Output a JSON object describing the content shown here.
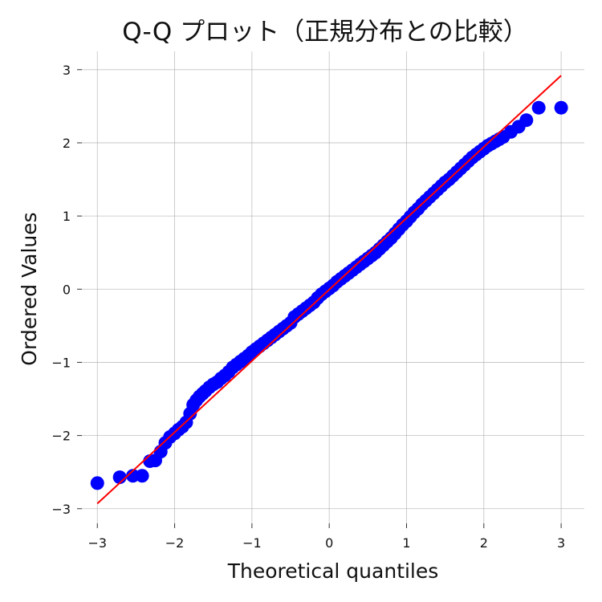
{
  "chart_data": {
    "type": "scatter",
    "title": "Q-Q プロット（正規分布との比較）",
    "xlabel": "Theoretical quantiles",
    "ylabel": "Ordered Values",
    "xlim": [
      -3.2,
      3.3
    ],
    "ylim": [
      -3.2,
      3.25
    ],
    "xticks": [
      -3,
      -2,
      -1,
      0,
      1,
      2,
      3
    ],
    "yticks": [
      -3,
      -2,
      -1,
      0,
      1,
      2,
      3
    ],
    "xtick_labels": [
      "−3",
      "−2",
      "−1",
      "0",
      "1",
      "2",
      "3"
    ],
    "ytick_labels": [
      "−3",
      "−2",
      "−1",
      "0",
      "1",
      "2",
      "3"
    ],
    "grid": true,
    "fit_line": {
      "x": [
        -3.0,
        3.0
      ],
      "y": [
        -2.93,
        2.92
      ],
      "color": "#ff0000"
    },
    "points_color": "#0000ff",
    "series": [
      {
        "x": [
          -3.0,
          -2.71,
          -2.54,
          -2.42,
          -2.32,
          -2.25,
          -2.18,
          -2.12,
          -2.06,
          -2.0,
          -1.95,
          -1.9,
          -1.85,
          -1.8,
          -1.76,
          -1.72,
          -1.68,
          -1.64,
          -1.6,
          -1.55,
          -1.5,
          -1.45,
          -1.4,
          -1.35,
          -1.3,
          -1.25,
          -1.2,
          -1.15,
          -1.1,
          -1.05,
          -1.0,
          -0.95,
          -0.9,
          -0.85,
          -0.8,
          -0.75,
          -0.7,
          -0.65,
          -0.6,
          -0.55,
          -0.5,
          -0.45,
          -0.4,
          -0.35,
          -0.3,
          -0.25,
          -0.2,
          -0.15,
          -0.1,
          -0.05,
          0.0,
          0.05,
          0.1,
          0.15,
          0.2,
          0.25,
          0.3,
          0.35,
          0.4,
          0.45,
          0.5,
          0.55,
          0.6,
          0.65,
          0.7,
          0.75,
          0.8,
          0.85,
          0.9,
          0.95,
          1.0,
          1.05,
          1.1,
          1.15,
          1.2,
          1.25,
          1.3,
          1.35,
          1.4,
          1.45,
          1.5,
          1.55,
          1.6,
          1.65,
          1.7,
          1.75,
          1.8,
          1.85,
          1.9,
          1.95,
          2.0,
          2.05,
          2.1,
          2.15,
          2.2,
          2.25,
          2.35,
          2.45,
          2.55,
          2.71,
          3.0
        ],
        "y": [
          -2.65,
          -2.57,
          -2.55,
          -2.55,
          -2.35,
          -2.34,
          -2.22,
          -2.1,
          -2.02,
          -1.97,
          -1.92,
          -1.88,
          -1.82,
          -1.7,
          -1.58,
          -1.52,
          -1.47,
          -1.43,
          -1.39,
          -1.34,
          -1.3,
          -1.27,
          -1.22,
          -1.18,
          -1.13,
          -1.07,
          -1.03,
          -0.99,
          -0.95,
          -0.91,
          -0.86,
          -0.82,
          -0.78,
          -0.74,
          -0.7,
          -0.66,
          -0.62,
          -0.58,
          -0.54,
          -0.5,
          -0.46,
          -0.38,
          -0.34,
          -0.3,
          -0.26,
          -0.22,
          -0.18,
          -0.12,
          -0.07,
          -0.03,
          0.01,
          0.05,
          0.1,
          0.14,
          0.18,
          0.22,
          0.26,
          0.3,
          0.34,
          0.38,
          0.42,
          0.46,
          0.5,
          0.55,
          0.6,
          0.65,
          0.7,
          0.76,
          0.82,
          0.88,
          0.93,
          0.99,
          1.05,
          1.1,
          1.16,
          1.21,
          1.26,
          1.31,
          1.36,
          1.41,
          1.46,
          1.5,
          1.55,
          1.6,
          1.65,
          1.7,
          1.75,
          1.8,
          1.84,
          1.88,
          1.92,
          1.96,
          1.99,
          2.02,
          2.05,
          2.08,
          2.15,
          2.22,
          2.31,
          2.48,
          2.48
        ]
      }
    ]
  }
}
